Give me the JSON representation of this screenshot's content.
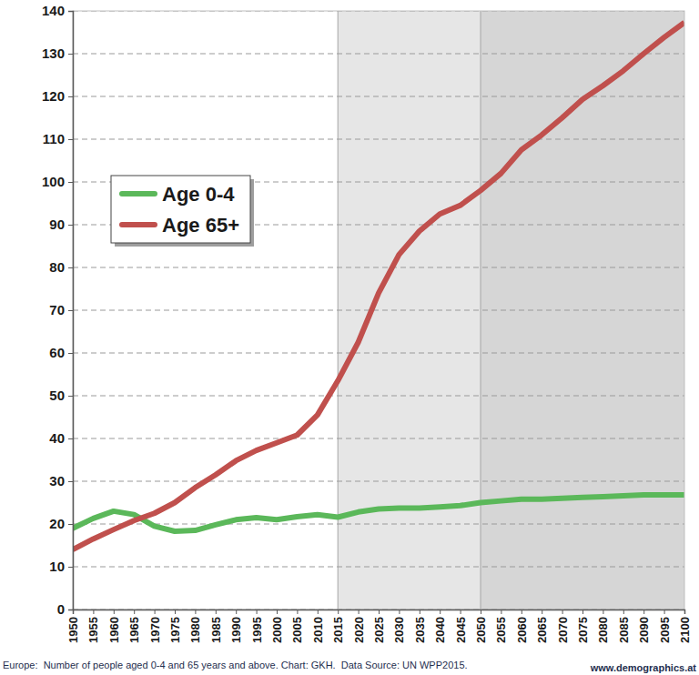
{
  "chart_data": {
    "type": "line",
    "title": "Europe:  Number of people aged 0-4 and 65 years and above. Chart: GKH.  Data Source: UN WPP2015.",
    "source": "www.demographics.at",
    "x": [
      1950,
      1955,
      1960,
      1965,
      1970,
      1975,
      1980,
      1985,
      1990,
      1995,
      2000,
      2005,
      2010,
      2015,
      2020,
      2025,
      2030,
      2035,
      2040,
      2045,
      2050,
      2055,
      2060,
      2065,
      2070,
      2075,
      2080,
      2085,
      2090,
      2095,
      2100
    ],
    "series": [
      {
        "name": "Age 0-4",
        "color": "#5bb85a",
        "values": [
          19,
          21.3,
          23,
          22.2,
          19.5,
          18.3,
          18.5,
          19.8,
          21,
          21.5,
          21,
          21.7,
          22.2,
          21.6,
          22.8,
          23.5,
          23.7,
          23.7,
          24,
          24.3,
          25,
          25.4,
          25.8,
          25.8,
          26,
          26.2,
          26.4,
          26.6,
          26.8,
          26.8,
          26.8
        ]
      },
      {
        "name": "Age 65+",
        "color": "#c0504d",
        "values": [
          14,
          16.5,
          18.7,
          20.8,
          22.5,
          25,
          28.5,
          31.5,
          34.8,
          37.2,
          39,
          40.8,
          45.5,
          53.5,
          62.5,
          74,
          83,
          88.5,
          92.5,
          94.5,
          98,
          102,
          107.5,
          111,
          115,
          119.3,
          122.5,
          126,
          130,
          133.8,
          137.3
        ]
      }
    ],
    "xlim": [
      1950,
      2100
    ],
    "xticks": [
      1950,
      1955,
      1960,
      1965,
      1970,
      1975,
      1980,
      1985,
      1990,
      1995,
      2000,
      2005,
      2010,
      2015,
      2020,
      2025,
      2030,
      2035,
      2040,
      2045,
      2050,
      2055,
      2060,
      2065,
      2070,
      2075,
      2080,
      2085,
      2090,
      2095,
      2100
    ],
    "ylim": [
      0,
      140
    ],
    "yticks": [
      0,
      10,
      20,
      30,
      40,
      50,
      60,
      70,
      80,
      90,
      100,
      110,
      120,
      130,
      140
    ],
    "annotations": [
      {
        "x0": 2015,
        "x1": 2050,
        "color": "#e6e6e6"
      },
      {
        "x0": 2050,
        "x1": 2100,
        "color": "#d6d6d6"
      }
    ],
    "grid": true,
    "legend": "left"
  }
}
